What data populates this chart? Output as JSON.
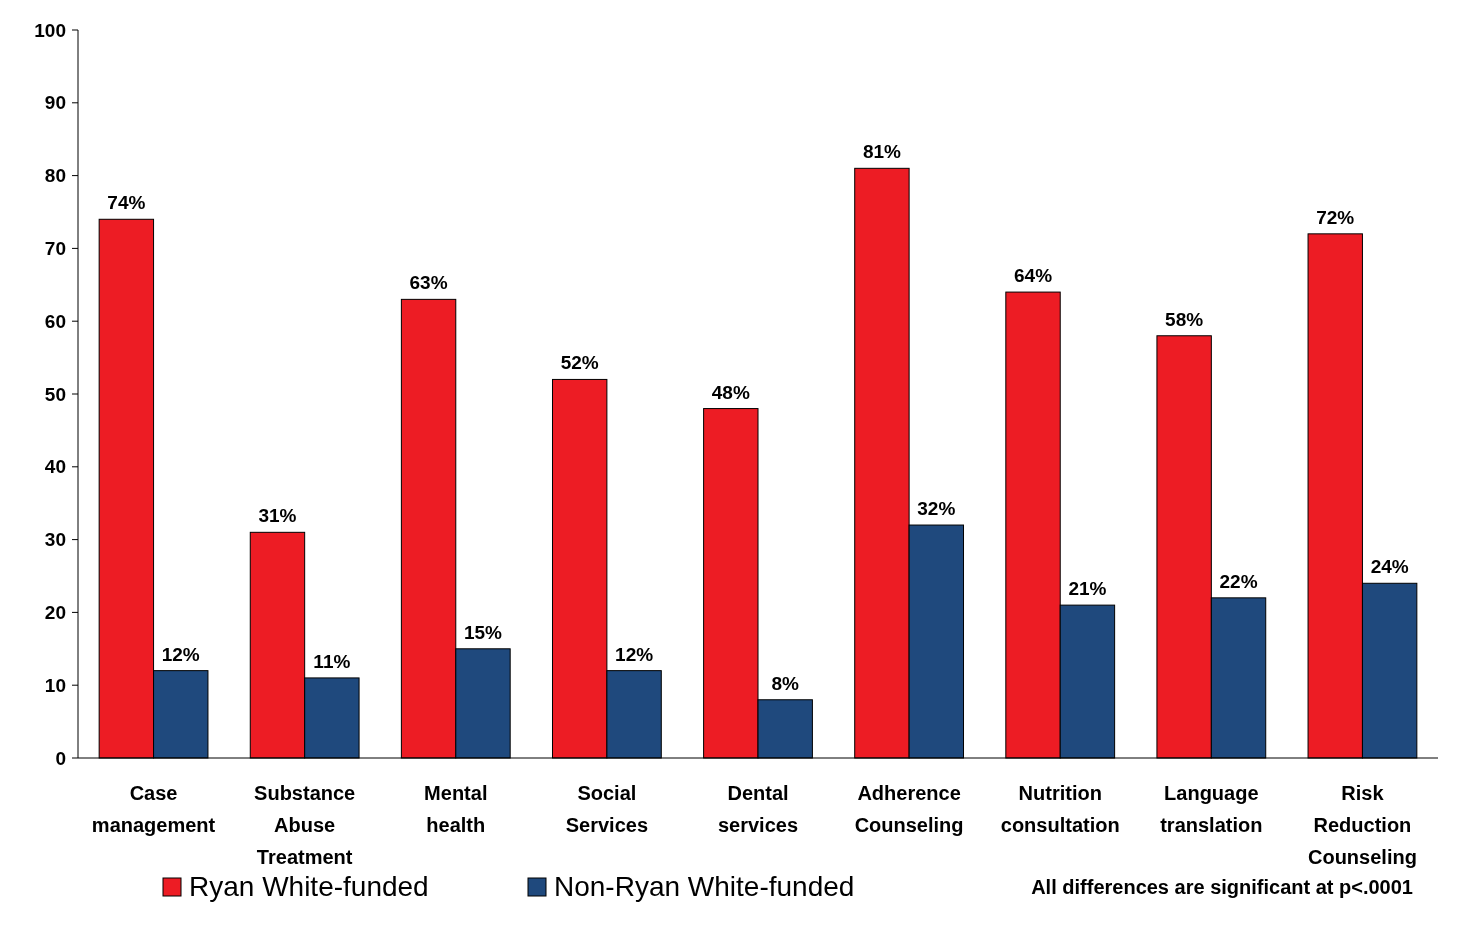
{
  "chart_data": {
    "type": "bar",
    "categories": [
      "Case management",
      "Substance Abuse Treatment",
      "Mental health",
      "Social Services",
      "Dental services",
      "Adherence Counseling",
      "Nutrition consultation",
      "Language translation",
      "Risk Reduction Counseling"
    ],
    "series": [
      {
        "name": "Ryan White-funded",
        "color": "#ed1c24",
        "values": [
          74,
          31,
          63,
          52,
          48,
          81,
          64,
          58,
          72
        ],
        "value_labels": [
          "74%",
          "31%",
          "63%",
          "52%",
          "48%",
          "81%",
          "64%",
          "58%",
          "72%"
        ]
      },
      {
        "name": "Non-Ryan White-funded",
        "color": "#1f497d",
        "values": [
          12,
          11,
          15,
          12,
          8,
          32,
          21,
          22,
          24
        ],
        "value_labels": [
          "12%",
          "11%",
          "15%",
          "12%",
          "8%",
          "32%",
          "21%",
          "22%",
          "24%"
        ]
      }
    ],
    "ylim": [
      0,
      100
    ],
    "yticks": [
      0,
      10,
      20,
      30,
      40,
      50,
      60,
      70,
      80,
      90,
      100
    ],
    "grid": false,
    "legend": "bottom",
    "annotations": [
      "All differences are significant at p<.0001"
    ]
  }
}
